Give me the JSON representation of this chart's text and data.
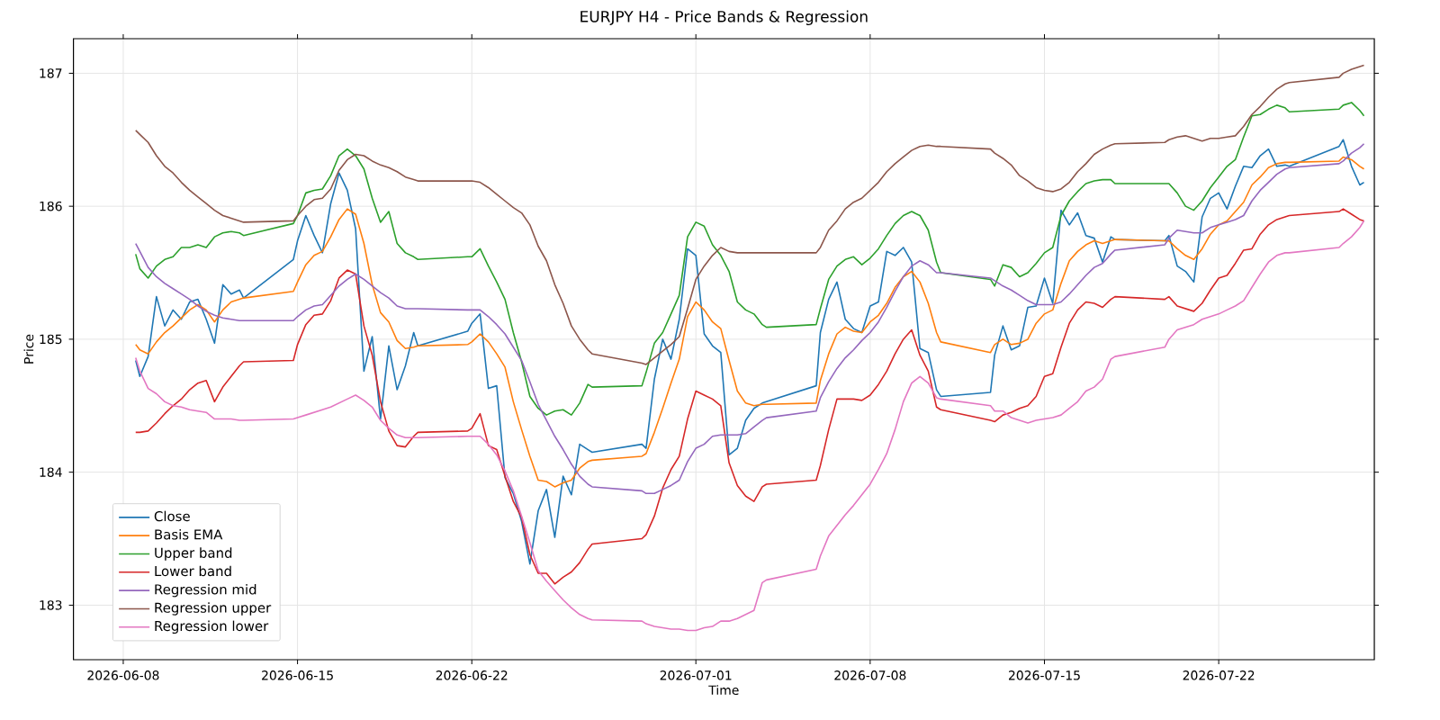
{
  "chart_data": {
    "type": "line",
    "title": "EURJPY H4 - Price Bands & Regression",
    "xlabel": "Time",
    "ylabel": "Price",
    "x": [
      "2026-06-08T12:00",
      "2026-06-08T16:00",
      "2026-06-09T00:00",
      "2026-06-09T08:00",
      "2026-06-09T16:00",
      "2026-06-10T00:00",
      "2026-06-10T08:00",
      "2026-06-10T16:00",
      "2026-06-11T00:00",
      "2026-06-11T08:00",
      "2026-06-11T16:00",
      "2026-06-12T00:00",
      "2026-06-12T08:00",
      "2026-06-12T16:00",
      "2026-06-12T20:00",
      "2026-06-14T20:00",
      "2026-06-15T00:00",
      "2026-06-15T08:00",
      "2026-06-15T16:00",
      "2026-06-16T00:00",
      "2026-06-16T08:00",
      "2026-06-16T16:00",
      "2026-06-17T00:00",
      "2026-06-17T08:00",
      "2026-06-17T16:00",
      "2026-06-18T00:00",
      "2026-06-18T08:00",
      "2026-06-18T16:00",
      "2026-06-19T00:00",
      "2026-06-19T08:00",
      "2026-06-19T16:00",
      "2026-06-19T20:00",
      "2026-06-21T20:00",
      "2026-06-22T00:00",
      "2026-06-22T08:00",
      "2026-06-22T16:00",
      "2026-06-23T00:00",
      "2026-06-23T08:00",
      "2026-06-23T16:00",
      "2026-06-24T00:00",
      "2026-06-24T08:00",
      "2026-06-24T16:00",
      "2026-06-25T00:00",
      "2026-06-25T08:00",
      "2026-06-25T16:00",
      "2026-06-26T00:00",
      "2026-06-26T08:00",
      "2026-06-26T16:00",
      "2026-06-26T20:00",
      "2026-06-28T20:00",
      "2026-06-29T00:00",
      "2026-06-29T08:00",
      "2026-06-29T16:00",
      "2026-06-30T00:00",
      "2026-06-30T08:00",
      "2026-06-30T16:00",
      "2026-07-01T00:00",
      "2026-07-01T08:00",
      "2026-07-01T16:00",
      "2026-07-02T00:00",
      "2026-07-02T08:00",
      "2026-07-02T16:00",
      "2026-07-03T00:00",
      "2026-07-03T08:00",
      "2026-07-03T16:00",
      "2026-07-03T20:00",
      "2026-07-05T20:00",
      "2026-07-06T00:00",
      "2026-07-06T08:00",
      "2026-07-06T16:00",
      "2026-07-07T00:00",
      "2026-07-07T08:00",
      "2026-07-07T16:00",
      "2026-07-08T00:00",
      "2026-07-08T08:00",
      "2026-07-08T16:00",
      "2026-07-09T00:00",
      "2026-07-09T08:00",
      "2026-07-09T16:00",
      "2026-07-10T00:00",
      "2026-07-10T08:00",
      "2026-07-10T16:00",
      "2026-07-10T20:00",
      "2026-07-12T20:00",
      "2026-07-13T00:00",
      "2026-07-13T08:00",
      "2026-07-13T16:00",
      "2026-07-14T00:00",
      "2026-07-14T08:00",
      "2026-07-14T16:00",
      "2026-07-15T00:00",
      "2026-07-15T08:00",
      "2026-07-15T16:00",
      "2026-07-16T00:00",
      "2026-07-16T08:00",
      "2026-07-16T16:00",
      "2026-07-17T00:00",
      "2026-07-17T08:00",
      "2026-07-17T16:00",
      "2026-07-17T20:00",
      "2026-07-19T20:00",
      "2026-07-20T00:00",
      "2026-07-20T08:00",
      "2026-07-20T16:00",
      "2026-07-21T00:00",
      "2026-07-21T08:00",
      "2026-07-21T16:00",
      "2026-07-22T00:00",
      "2026-07-22T08:00",
      "2026-07-22T16:00",
      "2026-07-23T00:00",
      "2026-07-23T08:00",
      "2026-07-23T16:00",
      "2026-07-24T00:00",
      "2026-07-24T08:00",
      "2026-07-24T16:00",
      "2026-07-24T20:00",
      "2026-07-26T20:00",
      "2026-07-27T00:00",
      "2026-07-27T08:00",
      "2026-07-27T16:00",
      "2026-07-27T20:00"
    ],
    "series": [
      {
        "name": "Close",
        "color": "#1f77b4",
        "values": [
          184.84,
          184.72,
          184.87,
          185.32,
          185.1,
          185.22,
          185.15,
          185.28,
          185.3,
          185.15,
          184.97,
          185.41,
          185.34,
          185.37,
          185.31,
          185.6,
          185.74,
          185.93,
          185.78,
          185.65,
          186.02,
          186.25,
          186.12,
          185.83,
          184.76,
          185.02,
          184.4,
          184.95,
          184.62,
          184.8,
          185.05,
          184.95,
          185.06,
          185.12,
          185.19,
          184.63,
          184.65,
          183.96,
          183.84,
          183.63,
          183.31,
          183.71,
          183.87,
          183.51,
          183.97,
          183.83,
          184.21,
          184.17,
          184.15,
          184.21,
          184.18,
          184.7,
          185.0,
          184.85,
          185.15,
          185.68,
          185.63,
          185.04,
          184.95,
          184.9,
          184.13,
          184.18,
          184.39,
          184.48,
          184.52,
          184.53,
          184.65,
          185.05,
          185.3,
          185.43,
          185.15,
          185.08,
          185.05,
          185.25,
          185.28,
          185.66,
          185.63,
          185.69,
          185.58,
          184.93,
          184.9,
          184.62,
          184.57,
          184.6,
          184.88,
          185.1,
          184.92,
          184.95,
          185.24,
          185.25,
          185.46,
          185.27,
          185.97,
          185.86,
          185.95,
          185.78,
          185.76,
          185.58,
          185.77,
          185.75,
          185.74,
          185.78,
          185.55,
          185.51,
          185.43,
          185.92,
          186.06,
          186.1,
          185.98,
          186.15,
          186.3,
          186.29,
          186.38,
          186.43,
          186.3,
          186.31,
          186.3,
          186.45,
          186.5,
          186.3,
          186.16,
          186.18
        ]
      },
      {
        "name": "Basis EMA",
        "color": "#ff7f0e",
        "values": [
          184.96,
          184.92,
          184.89,
          184.98,
          185.05,
          185.1,
          185.16,
          185.22,
          185.26,
          185.22,
          185.13,
          185.22,
          185.28,
          185.3,
          185.31,
          185.36,
          185.43,
          185.56,
          185.63,
          185.66,
          185.77,
          185.9,
          185.98,
          185.94,
          185.72,
          185.41,
          185.2,
          185.13,
          184.99,
          184.93,
          184.94,
          184.95,
          184.96,
          184.98,
          185.04,
          184.98,
          184.89,
          184.79,
          184.53,
          184.32,
          184.12,
          183.94,
          183.93,
          183.89,
          183.92,
          183.94,
          184.03,
          184.08,
          184.09,
          184.12,
          184.14,
          184.3,
          184.48,
          184.67,
          184.85,
          185.17,
          185.28,
          185.22,
          185.13,
          185.08,
          184.84,
          184.61,
          184.52,
          184.5,
          184.51,
          184.51,
          184.52,
          184.69,
          184.89,
          185.04,
          185.09,
          185.06,
          185.05,
          185.13,
          185.18,
          185.27,
          185.39,
          185.47,
          185.51,
          185.43,
          185.27,
          185.05,
          184.98,
          184.9,
          184.96,
          185.0,
          184.96,
          184.97,
          185.0,
          185.12,
          185.19,
          185.22,
          185.42,
          185.59,
          185.66,
          185.71,
          185.74,
          185.72,
          185.74,
          185.75,
          185.74,
          185.74,
          185.68,
          185.63,
          185.6,
          185.68,
          185.79,
          185.86,
          185.89,
          185.96,
          186.03,
          186.16,
          186.22,
          186.29,
          186.32,
          186.33,
          186.33,
          186.34,
          186.37,
          186.35,
          186.3,
          186.28
        ]
      },
      {
        "name": "Upper band",
        "color": "#2ca02c",
        "values": [
          185.64,
          185.53,
          185.46,
          185.55,
          185.6,
          185.62,
          185.69,
          185.69,
          185.71,
          185.69,
          185.77,
          185.8,
          185.81,
          185.8,
          185.78,
          185.87,
          185.93,
          186.1,
          186.12,
          186.13,
          186.23,
          186.38,
          186.43,
          186.38,
          186.28,
          186.06,
          185.88,
          185.96,
          185.72,
          185.65,
          185.62,
          185.6,
          185.62,
          185.62,
          185.68,
          185.55,
          185.43,
          185.3,
          185.05,
          184.83,
          184.57,
          184.48,
          184.43,
          184.46,
          184.47,
          184.43,
          184.52,
          184.66,
          184.64,
          184.65,
          184.75,
          184.97,
          185.05,
          185.19,
          185.33,
          185.77,
          185.88,
          185.85,
          185.71,
          185.63,
          185.51,
          185.28,
          185.22,
          185.19,
          185.11,
          185.09,
          185.11,
          185.23,
          185.45,
          185.55,
          185.6,
          185.62,
          185.56,
          185.61,
          185.68,
          185.78,
          185.87,
          185.93,
          185.96,
          185.93,
          185.82,
          185.58,
          185.5,
          185.45,
          185.4,
          185.56,
          185.54,
          185.47,
          185.5,
          185.57,
          185.65,
          185.69,
          185.93,
          186.04,
          186.11,
          186.17,
          186.19,
          186.2,
          186.2,
          186.17,
          186.17,
          186.17,
          186.1,
          186.0,
          185.97,
          186.04,
          186.14,
          186.22,
          186.3,
          186.35,
          186.52,
          186.68,
          186.69,
          186.73,
          186.76,
          186.74,
          186.71,
          186.73,
          186.76,
          186.78,
          186.72,
          186.68
        ]
      },
      {
        "name": "Lower band",
        "color": "#d62728",
        "values": [
          184.3,
          184.3,
          184.31,
          184.37,
          184.44,
          184.5,
          184.55,
          184.62,
          184.67,
          184.69,
          184.53,
          184.64,
          184.72,
          184.8,
          184.83,
          184.84,
          184.96,
          185.11,
          185.18,
          185.19,
          185.29,
          185.46,
          185.52,
          185.49,
          185.1,
          184.88,
          184.53,
          184.31,
          184.2,
          184.19,
          184.27,
          184.3,
          184.31,
          184.33,
          184.44,
          184.2,
          184.17,
          183.97,
          183.78,
          183.66,
          183.38,
          183.24,
          183.24,
          183.16,
          183.21,
          183.25,
          183.32,
          183.42,
          183.46,
          183.5,
          183.53,
          183.67,
          183.88,
          184.02,
          184.12,
          184.4,
          184.61,
          184.58,
          184.55,
          184.5,
          184.07,
          183.9,
          183.82,
          183.78,
          183.89,
          183.91,
          183.94,
          184.05,
          184.32,
          184.55,
          184.55,
          184.55,
          184.54,
          184.58,
          184.66,
          184.76,
          184.89,
          185.0,
          185.07,
          184.88,
          184.76,
          184.49,
          184.47,
          184.39,
          184.38,
          184.43,
          184.45,
          184.48,
          184.5,
          184.57,
          184.72,
          184.74,
          184.94,
          185.12,
          185.22,
          185.28,
          185.27,
          185.24,
          185.3,
          185.32,
          185.3,
          185.32,
          185.25,
          185.23,
          185.21,
          185.27,
          185.37,
          185.46,
          185.48,
          185.57,
          185.67,
          185.68,
          185.79,
          185.86,
          185.9,
          185.92,
          185.93,
          185.96,
          185.98,
          185.94,
          185.9,
          185.89
        ]
      },
      {
        "name": "Regression mid",
        "color": "#9467bd",
        "values": [
          185.72,
          185.66,
          185.54,
          185.47,
          185.42,
          185.38,
          185.34,
          185.3,
          185.25,
          185.21,
          185.18,
          185.16,
          185.15,
          185.14,
          185.14,
          185.14,
          185.17,
          185.22,
          185.25,
          185.26,
          185.33,
          185.4,
          185.45,
          185.49,
          185.45,
          185.4,
          185.35,
          185.31,
          185.25,
          185.23,
          185.23,
          185.23,
          185.22,
          185.22,
          185.22,
          185.17,
          185.11,
          185.04,
          184.94,
          184.84,
          184.68,
          184.51,
          184.39,
          184.27,
          184.17,
          184.06,
          183.97,
          183.91,
          183.89,
          183.86,
          183.84,
          183.84,
          183.87,
          183.9,
          183.94,
          184.08,
          184.18,
          184.21,
          184.27,
          184.28,
          184.28,
          184.28,
          184.29,
          184.34,
          184.39,
          184.41,
          184.46,
          184.56,
          184.68,
          184.78,
          184.86,
          184.92,
          184.99,
          185.05,
          185.13,
          185.24,
          185.36,
          185.47,
          185.55,
          185.59,
          185.56,
          185.5,
          185.5,
          185.46,
          185.44,
          185.4,
          185.37,
          185.33,
          185.29,
          185.26,
          185.26,
          185.26,
          185.28,
          185.34,
          185.41,
          185.48,
          185.54,
          185.57,
          185.64,
          185.67,
          185.71,
          185.76,
          185.82,
          185.81,
          185.8,
          185.8,
          185.84,
          185.86,
          185.88,
          185.9,
          185.93,
          186.04,
          186.12,
          186.18,
          186.24,
          186.28,
          186.29,
          186.32,
          186.34,
          186.4,
          186.44,
          186.47
        ]
      },
      {
        "name": "Regression upper",
        "color": "#8c564b",
        "values": [
          186.57,
          186.54,
          186.48,
          186.38,
          186.3,
          186.25,
          186.18,
          186.12,
          186.07,
          186.02,
          185.97,
          185.93,
          185.91,
          185.89,
          185.88,
          185.89,
          185.93,
          186.0,
          186.05,
          186.06,
          186.13,
          186.27,
          186.35,
          186.39,
          186.38,
          186.34,
          186.31,
          186.29,
          186.26,
          186.22,
          186.2,
          186.19,
          186.19,
          186.19,
          186.18,
          186.14,
          186.09,
          186.04,
          185.99,
          185.95,
          185.86,
          185.7,
          185.59,
          185.41,
          185.27,
          185.1,
          185.0,
          184.92,
          184.89,
          184.82,
          184.81,
          184.86,
          184.91,
          184.96,
          185.02,
          185.23,
          185.45,
          185.55,
          185.63,
          185.69,
          185.66,
          185.65,
          185.65,
          185.65,
          185.65,
          185.65,
          185.65,
          185.69,
          185.82,
          185.89,
          185.98,
          186.03,
          186.06,
          186.12,
          186.18,
          186.26,
          186.32,
          186.37,
          186.42,
          186.45,
          186.46,
          186.45,
          186.45,
          186.43,
          186.4,
          186.36,
          186.31,
          186.23,
          186.19,
          186.14,
          186.12,
          186.11,
          186.13,
          186.18,
          186.26,
          186.32,
          186.39,
          186.43,
          186.46,
          186.47,
          186.48,
          186.5,
          186.52,
          186.53,
          186.51,
          186.49,
          186.51,
          186.51,
          186.52,
          186.53,
          186.6,
          186.69,
          186.75,
          186.82,
          186.88,
          186.92,
          186.93,
          186.97,
          187.0,
          187.03,
          187.05,
          187.06
        ]
      },
      {
        "name": "Regression lower",
        "color": "#e377c2",
        "values": [
          184.86,
          184.76,
          184.63,
          184.59,
          184.53,
          184.5,
          184.49,
          184.47,
          184.46,
          184.45,
          184.4,
          184.4,
          184.4,
          184.39,
          184.39,
          184.4,
          184.41,
          184.43,
          184.45,
          184.47,
          184.49,
          184.52,
          184.55,
          184.58,
          184.54,
          184.49,
          184.39,
          184.33,
          184.28,
          184.26,
          184.26,
          184.26,
          184.27,
          184.27,
          184.27,
          184.21,
          184.13,
          184.01,
          183.86,
          183.67,
          183.47,
          183.26,
          183.18,
          183.11,
          183.04,
          182.98,
          182.93,
          182.9,
          182.89,
          182.88,
          182.86,
          182.84,
          182.83,
          182.82,
          182.82,
          182.81,
          182.81,
          182.83,
          182.84,
          182.88,
          182.88,
          182.9,
          182.93,
          182.96,
          183.17,
          183.19,
          183.27,
          183.37,
          183.52,
          183.6,
          183.68,
          183.75,
          183.83,
          183.91,
          184.02,
          184.14,
          184.32,
          184.53,
          184.67,
          184.72,
          184.67,
          184.56,
          184.55,
          184.5,
          184.46,
          184.46,
          184.41,
          184.39,
          184.37,
          184.39,
          184.4,
          184.41,
          184.43,
          184.48,
          184.53,
          184.61,
          184.64,
          184.7,
          184.85,
          184.87,
          184.94,
          185.0,
          185.07,
          185.09,
          185.11,
          185.15,
          185.17,
          185.19,
          185.22,
          185.25,
          185.29,
          185.39,
          185.49,
          185.58,
          185.63,
          185.65,
          185.65,
          185.69,
          185.72,
          185.77,
          185.84,
          185.89
        ]
      }
    ],
    "xlim": [
      "2026-06-06T00:00",
      "2026-07-28T06:00"
    ],
    "ylim": [
      182.59,
      187.26
    ],
    "xticks": [
      "2026-06-08",
      "2026-06-15",
      "2026-06-22",
      "2026-07-01",
      "2026-07-08",
      "2026-07-15",
      "2026-07-22"
    ],
    "yticks": [
      183,
      184,
      185,
      186,
      187
    ],
    "grid": true,
    "legend": "bottom left"
  }
}
